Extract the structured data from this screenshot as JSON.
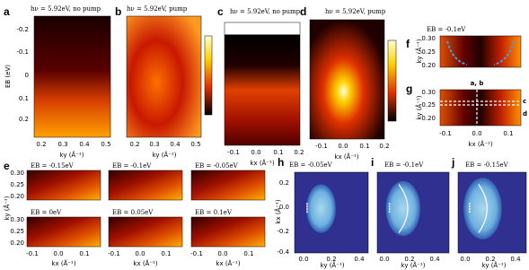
{
  "panels": [
    {
      "letter": "a",
      "title": "hν = 5.92eV, no pump",
      "y_label": "EB (eV)",
      "y_ticks": [
        "-0.2",
        "-0.1",
        "0",
        "0.1",
        "0.2"
      ],
      "x_ticks": [
        "0.2",
        "0.3",
        "0.4",
        "0.5"
      ],
      "x_label": "ky (Å⁻¹)"
    },
    {
      "letter": "b",
      "title": "hν = 5.92eV, pump",
      "x_ticks": [
        "0.2",
        "0.3",
        "0.4",
        "0.5"
      ],
      "x_label": "ky (Å⁻¹)"
    },
    {
      "letter": "c",
      "title": "hν = 5.92eV, no pump",
      "x_ticks": [
        "-0.1",
        "0.0",
        "0.1",
        "0.2"
      ],
      "x_label": "kx (Å⁻¹)"
    },
    {
      "letter": "d",
      "title": "hν = 5.92eV, pump",
      "x_ticks": [
        "-0.1",
        "0.0",
        "0.1",
        "0.2"
      ],
      "x_label": "kx (Å⁻¹)"
    },
    {
      "letter": "f",
      "title": "EB = -0.1eV",
      "y_ticks": [
        "0.30",
        "0.25",
        "0.20"
      ],
      "y_label": "ky (Å⁻¹)"
    },
    {
      "letter": "g",
      "y_ticks": [
        "0.30",
        "0.25",
        "0.20"
      ],
      "y_label": "ky (Å⁻¹)",
      "x_ticks": [
        "-0.1",
        "0.0",
        "0.1"
      ],
      "x_label": "kx (Å⁻¹)",
      "annotations": [
        "a, b",
        "c",
        "d"
      ]
    },
    {
      "letter": "h",
      "title": "EB = -0.05eV",
      "y_ticks": [
        "0.2",
        "0.0",
        "-0.2",
        "-0.4"
      ],
      "y_label": "kx (Å⁻¹)",
      "x_ticks": [
        "0.0",
        "0.2",
        "0.4"
      ],
      "x_label": "ky (Å⁻¹)"
    },
    {
      "letter": "i",
      "title": "EB = -0.1eV",
      "x_ticks": [
        "0.0",
        "0.2",
        "0.4"
      ],
      "x_label": "ky (Å⁻¹)"
    },
    {
      "letter": "j",
      "title": "EB = -0.15eV",
      "x_ticks": [
        "0.0",
        "0.2",
        "0.4"
      ],
      "x_label": "ky (Å⁻¹)"
    }
  ],
  "grid_panel": {
    "letter": "e",
    "titles": [
      "EB = -0.15eV",
      "EB = -0.1eV",
      "EB = -0.05eV",
      "EB = 0eV",
      "EB = 0.05eV",
      "EB = 0.1eV"
    ],
    "y_ticks": [
      "0.30",
      "0.25",
      "0.20"
    ],
    "y_label": "ky (Å⁻¹)",
    "x_ticks": [
      "-0.1",
      "0.0",
      "0.1"
    ],
    "x_label": "kx (Å⁻¹)"
  }
}
